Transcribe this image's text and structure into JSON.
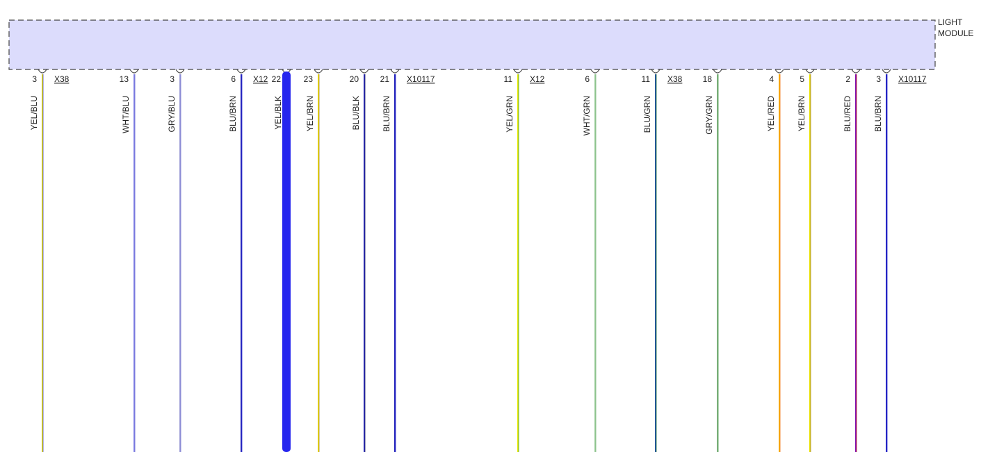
{
  "module": {
    "label_lines": [
      "LIGHT",
      "MODULE"
    ]
  },
  "wires": [
    {
      "pin": "3",
      "color": "YEL/BLU",
      "connector": "X38"
    },
    {
      "pin": "13",
      "color": "WHT/BLU"
    },
    {
      "pin": "3",
      "color": "GRY/BLU"
    },
    {
      "pin": "6",
      "color": "BLU/BRN",
      "connector": "X12"
    },
    {
      "pin": "22",
      "color": "YEL/BLK"
    },
    {
      "pin": "23",
      "color": "YEL/BRN"
    },
    {
      "pin": "20",
      "color": "BLU/BLK"
    },
    {
      "pin": "21",
      "color": "BLU/BRN",
      "connector": "X10117"
    },
    {
      "pin": "11",
      "color": "YEL/GRN",
      "connector": "X12"
    },
    {
      "pin": "6",
      "color": "WHT/GRN"
    },
    {
      "pin": "11",
      "color": "BLU/GRN",
      "connector": "X38"
    },
    {
      "pin": "18",
      "color": "GRY/GRN"
    },
    {
      "pin": "4",
      "color": "YEL/RED"
    },
    {
      "pin": "5",
      "color": "YEL/BRN"
    },
    {
      "pin": "2",
      "color": "BLU/RED"
    },
    {
      "pin": "3",
      "color": "BLU/BRN",
      "connector": "X10117"
    }
  ]
}
